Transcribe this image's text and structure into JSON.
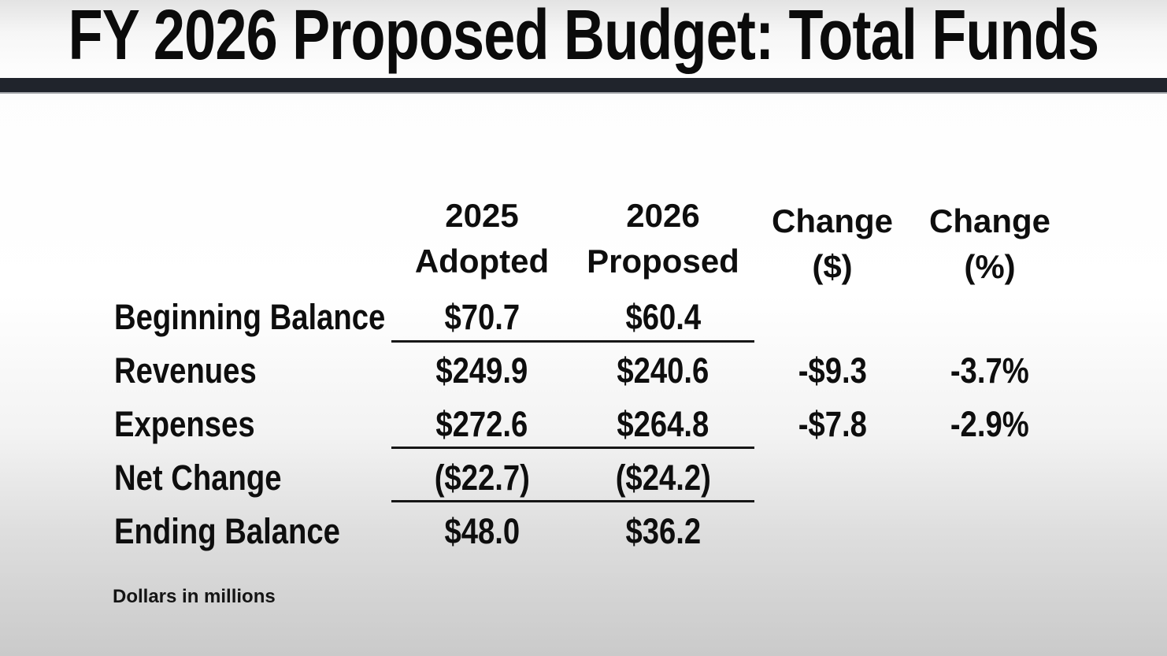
{
  "slide": {
    "title": "FY 2026 Proposed Budget: Total Funds",
    "footnote": "Dollars in millions"
  },
  "table": {
    "headers": [
      {
        "line1": "2025",
        "line2": "Adopted"
      },
      {
        "line1": "2026",
        "line2": "Proposed"
      },
      {
        "line1": "Change",
        "line2": "($)"
      },
      {
        "line1": "Change",
        "line2": "(%)"
      }
    ],
    "rows": [
      {
        "label": "Beginning Balance",
        "adopted_2025": "$70.7",
        "proposed_2026": "$60.4",
        "change_dollar": "",
        "change_percent": ""
      },
      {
        "label": "Revenues",
        "adopted_2025": "$249.9",
        "proposed_2026": "$240.6",
        "change_dollar": "-$9.3",
        "change_percent": "-3.7%"
      },
      {
        "label": "Expenses",
        "adopted_2025": "$272.6",
        "proposed_2026": "$264.8",
        "change_dollar": "-$7.8",
        "change_percent": "-2.9%"
      },
      {
        "label": "Net Change",
        "adopted_2025": "($22.7)",
        "proposed_2026": "($24.2)",
        "change_dollar": "",
        "change_percent": ""
      },
      {
        "label": "Ending Balance",
        "adopted_2025": "$48.0",
        "proposed_2026": "$36.2",
        "change_dollar": "",
        "change_percent": ""
      }
    ]
  },
  "chart_data": {
    "type": "table",
    "title": "FY 2026 Proposed Budget: Total Funds",
    "units": "Dollars in millions",
    "columns": [
      "",
      "2025 Adopted",
      "2026 Proposed",
      "Change ($)",
      "Change (%)"
    ],
    "rows": [
      [
        "Beginning Balance",
        70.7,
        60.4,
        null,
        null
      ],
      [
        "Revenues",
        249.9,
        240.6,
        -9.3,
        -3.7
      ],
      [
        "Expenses",
        272.6,
        264.8,
        -7.8,
        -2.9
      ],
      [
        "Net Change",
        -22.7,
        -24.2,
        null,
        null
      ],
      [
        "Ending Balance",
        48.0,
        36.2,
        null,
        null
      ]
    ]
  },
  "colors": {
    "divider_bar": "#20242c",
    "text": "#0e0e0e",
    "rule_line": "#161616"
  }
}
